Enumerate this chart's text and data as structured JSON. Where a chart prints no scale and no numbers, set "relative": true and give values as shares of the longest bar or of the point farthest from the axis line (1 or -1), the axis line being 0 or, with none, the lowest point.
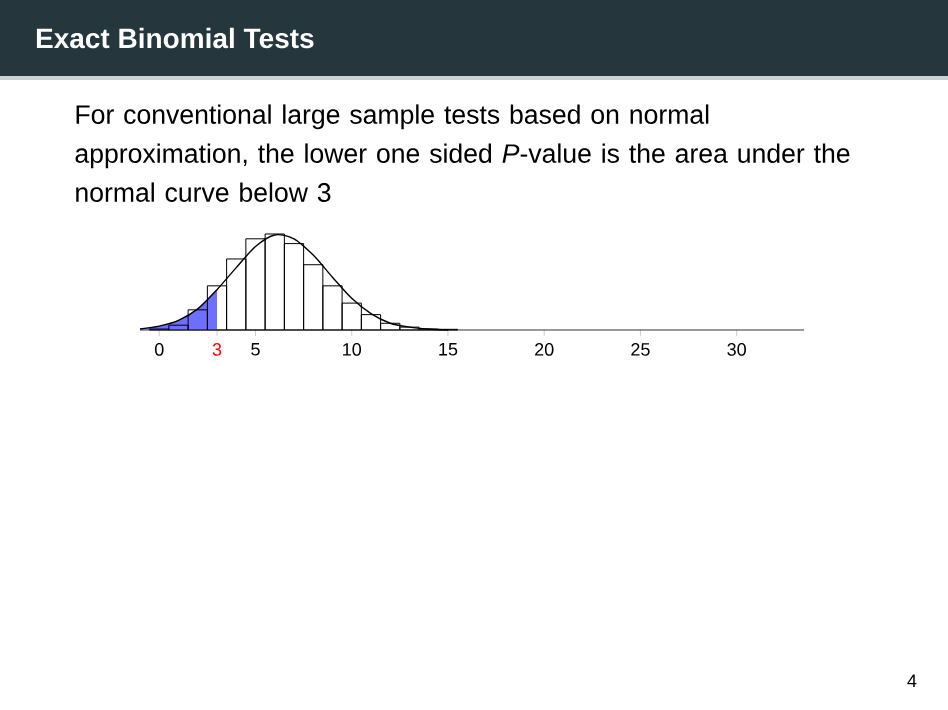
{
  "chart_data": {
    "type": "histogram",
    "title": "Exact Binomial Tests",
    "subtitle": "For conventional large sample tests based on normal approximation, the lower one sided *P*-value is the area under the normal curve below 3",
    "annotations": [
      "4"
    ],
    "relative": true,
    "bins": [
      -0.5,
      0.5,
      1.5,
      2.5,
      3.5,
      4.5,
      5.5,
      6.5,
      7.5,
      8.5,
      9.5,
      10.5,
      11.5,
      12.5,
      13.5,
      14.5,
      15.5
    ],
    "values": [
      0.01,
      0.05,
      0.21,
      0.46,
      0.74,
      0.95,
      1,
      0.9,
      0.68,
      0.46,
      0.28,
      0.16,
      0.07,
      0.03,
      0.01,
      0.007
    ],
    "color": "#000000",
    "series": [
      {
        "type": "area",
        "color": "#6f6fff",
        "x": [
          -1,
          0,
          1,
          2,
          3
        ],
        "values": [
          0.01,
          0.04,
          0.1,
          0.22,
          0.42
        ]
      },
      {
        "type": "line",
        "color": "#000000",
        "x": [
          -1,
          0,
          1,
          2,
          3,
          4,
          5,
          6,
          7,
          8,
          9,
          10,
          11,
          12,
          13,
          14,
          15
        ],
        "values": [
          0.01,
          0.04,
          0.1,
          0.22,
          0.42,
          0.65,
          0.87,
          0.99,
          0.95,
          0.78,
          0.55,
          0.33,
          0.17,
          0.07,
          0.03,
          0.01,
          0.0
        ]
      }
    ],
    "xlim": [
      -1,
      33.5
    ],
    "xticks": [
      0,
      3,
      5,
      10,
      15,
      20,
      25,
      30
    ],
    "grid": false,
    "marker": "none"
  }
}
